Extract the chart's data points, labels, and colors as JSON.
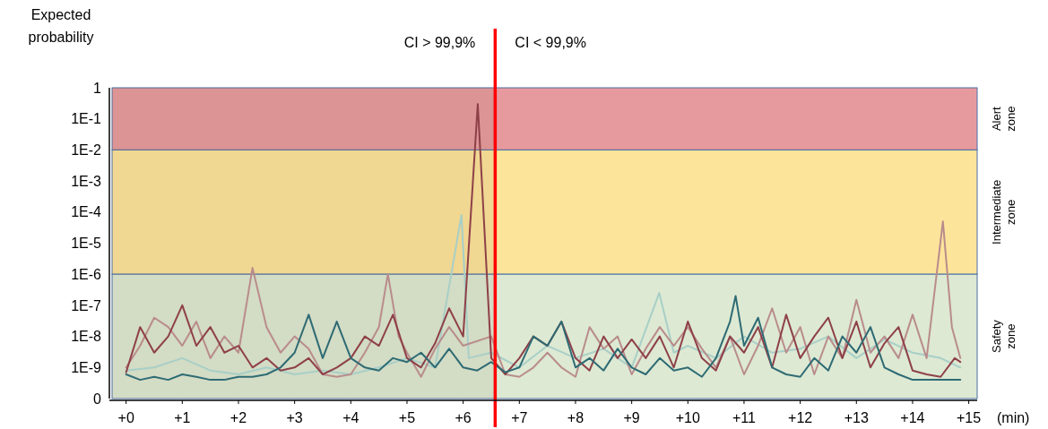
{
  "chart_data": {
    "type": "line",
    "ylabel": "Expected probability",
    "xlabel": "(min)",
    "log": "y",
    "marker": "none",
    "line_style": "solid",
    "xlim": [
      -0.25,
      15.15
    ],
    "xticks": [
      {
        "value": 0,
        "label": "+0"
      },
      {
        "value": 1,
        "label": "+1"
      },
      {
        "value": 2,
        "label": "+2"
      },
      {
        "value": 3,
        "label": "+3"
      },
      {
        "value": 4,
        "label": "+4"
      },
      {
        "value": 5,
        "label": "+5"
      },
      {
        "value": 6,
        "label": "+6"
      },
      {
        "value": 7,
        "label": "+7"
      },
      {
        "value": 8,
        "label": "+8"
      },
      {
        "value": 9,
        "label": "+9"
      },
      {
        "value": 10,
        "label": "+10"
      },
      {
        "value": 11,
        "label": "+11"
      },
      {
        "value": 12,
        "label": "+12"
      },
      {
        "value": 13,
        "label": "+13"
      },
      {
        "value": 14,
        "label": "+14"
      },
      {
        "value": 15,
        "label": "+15"
      }
    ],
    "ylim": [
      1e-10,
      1
    ],
    "yticks": [
      {
        "value": 1e-10,
        "label": "0"
      },
      {
        "value": 1e-09,
        "label": "1E-9"
      },
      {
        "value": 1e-08,
        "label": "1E-8"
      },
      {
        "value": 1e-07,
        "label": "1E-7"
      },
      {
        "value": 1e-06,
        "label": "1E-6"
      },
      {
        "value": 1e-05,
        "label": "1E-5"
      },
      {
        "value": 0.0001,
        "label": "1E-4"
      },
      {
        "value": 0.001,
        "label": "1E-3"
      },
      {
        "value": 0.01,
        "label": "1E-2"
      },
      {
        "value": 0.1,
        "label": "1E-1"
      },
      1
    ],
    "bands": [
      {
        "axis": "y",
        "from": 0.01,
        "to": 1,
        "label": "Alert zone",
        "color": "#e79a9e"
      },
      {
        "axis": "y",
        "from": 1e-06,
        "to": 0.01,
        "label": "Intermediate zone",
        "color": "#fde49b"
      },
      {
        "axis": "y",
        "from": 1e-10,
        "to": 1e-06,
        "label": "Safety zone",
        "color": "#dde9d3"
      },
      {
        "axis": "x",
        "from": -0.25,
        "to": 6.57,
        "color": "#6e5a3c"
      }
    ],
    "ref_lines": [
      {
        "axis": "x",
        "value": 6.57,
        "color": "#ff0000",
        "line_style": "solid"
      }
    ],
    "annotations": [
      "CI > 99,9%",
      "CI < 99,9%"
    ],
    "series": [
      {
        "color": "#a8cfc7",
        "x": [
          0,
          0.5,
          1,
          1.5,
          2,
          2.5,
          3,
          3.5,
          4,
          4.5,
          5,
          5.5,
          5.97,
          6.1,
          6.5,
          7,
          7.5,
          8,
          8.5,
          9,
          9.49,
          9.75,
          10,
          10.5,
          11,
          11.5,
          12,
          12.5,
          13,
          13.5,
          14,
          14.5,
          14.85
        ],
        "values": [
          8e-10,
          1e-09,
          2e-09,
          8e-10,
          6e-10,
          1e-09,
          6e-10,
          8e-10,
          6e-10,
          1e-09,
          2e-09,
          1e-09,
          8e-05,
          2e-09,
          3e-09,
          1e-09,
          5e-09,
          2e-09,
          4e-09,
          1e-09,
          2.5e-07,
          3e-09,
          5e-09,
          2e-09,
          1e-08,
          3e-09,
          4e-09,
          1e-08,
          2e-09,
          8e-09,
          3e-09,
          2e-09,
          1e-09
        ]
      },
      {
        "color": "#b98c8c",
        "x": [
          0,
          0.25,
          0.5,
          0.75,
          1,
          1.25,
          1.5,
          1.75,
          2,
          2.25,
          2.5,
          2.75,
          3,
          3.25,
          3.5,
          3.75,
          4,
          4.25,
          4.5,
          4.66,
          4.85,
          5,
          5.25,
          5.5,
          5.75,
          6,
          6.5,
          6.75,
          7,
          7.25,
          7.5,
          7.75,
          8,
          8.25,
          8.5,
          8.75,
          9,
          9.25,
          9.5,
          9.75,
          10,
          10.25,
          10.5,
          10.75,
          11,
          11.25,
          11.5,
          11.75,
          12,
          12.25,
          12.5,
          12.75,
          13,
          13.25,
          13.5,
          13.75,
          14,
          14.25,
          14.54,
          14.7,
          14.85
        ],
        "values": [
          1e-09,
          5e-09,
          4e-08,
          2e-08,
          5e-09,
          3e-08,
          2e-09,
          1e-08,
          3e-09,
          1.6e-06,
          2e-08,
          3e-09,
          1e-08,
          4e-09,
          6e-10,
          5e-10,
          6e-10,
          3e-09,
          2e-08,
          1e-06,
          1e-08,
          3e-09,
          5e-10,
          4e-09,
          2e-08,
          5e-09,
          1e-08,
          6e-10,
          5e-10,
          1e-09,
          3e-09,
          1e-09,
          5e-10,
          2e-08,
          4e-09,
          1e-08,
          6e-10,
          4e-09,
          2e-08,
          5e-09,
          2e-08,
          4e-09,
          1e-09,
          1e-08,
          6e-10,
          5e-09,
          8e-08,
          3e-09,
          2e-08,
          6e-10,
          1e-08,
          2e-09,
          1.5e-07,
          3e-09,
          1e-08,
          2e-09,
          5e-08,
          2e-09,
          5e-05,
          2e-08,
          2e-09
        ]
      },
      {
        "color": "#8e4048",
        "x": [
          0,
          0.25,
          0.5,
          0.75,
          1,
          1.25,
          1.5,
          1.75,
          2,
          2.25,
          2.5,
          2.75,
          3,
          3.25,
          3.5,
          3.75,
          4,
          4.25,
          4.5,
          4.75,
          5,
          5.25,
          5.5,
          5.75,
          6,
          6.26,
          6.5,
          6.75,
          7,
          7.25,
          7.5,
          7.75,
          8,
          8.25,
          8.5,
          8.75,
          9,
          9.25,
          9.5,
          9.75,
          10,
          10.25,
          10.5,
          10.75,
          11,
          11.25,
          11.5,
          11.75,
          12,
          12.25,
          12.5,
          12.75,
          13,
          13.25,
          13.5,
          13.75,
          14,
          14.25,
          14.5,
          14.75,
          14.85
        ],
        "values": [
          7e-10,
          2e-08,
          3e-09,
          1e-08,
          1e-07,
          5e-09,
          2e-08,
          3e-09,
          5e-09,
          1e-09,
          2e-09,
          8e-10,
          1e-09,
          2e-09,
          6e-10,
          1e-09,
          2e-09,
          1e-08,
          5e-09,
          5e-08,
          2e-09,
          1e-09,
          6e-09,
          8e-08,
          1e-08,
          0.3,
          2e-09,
          6e-10,
          2e-09,
          1e-08,
          5e-09,
          3e-08,
          2e-09,
          8e-10,
          1e-08,
          2e-09,
          8e-09,
          2e-09,
          1e-08,
          1e-09,
          3e-08,
          2e-09,
          8e-10,
          1e-08,
          3e-09,
          2e-08,
          1e-09,
          5e-08,
          2e-09,
          1e-08,
          4e-08,
          2e-09,
          3e-08,
          1e-09,
          6e-09,
          2e-08,
          8e-10,
          6e-10,
          5e-10,
          2e-09,
          1.5e-09
        ]
      },
      {
        "color": "#2e6b74",
        "x": [
          0,
          0.25,
          0.5,
          0.75,
          1,
          1.25,
          1.5,
          1.75,
          2,
          2.25,
          2.5,
          2.75,
          3,
          3.25,
          3.5,
          3.75,
          4,
          4.25,
          4.5,
          4.75,
          5,
          5.25,
          5.5,
          5.75,
          6,
          6.25,
          6.5,
          6.75,
          7,
          7.25,
          7.5,
          7.75,
          8,
          8.25,
          8.5,
          8.75,
          9,
          9.25,
          9.5,
          9.75,
          10,
          10.25,
          10.5,
          10.75,
          10.85,
          11,
          11.25,
          11.5,
          11.75,
          12,
          12.25,
          12.5,
          12.75,
          13,
          13.25,
          13.5,
          13.75,
          14,
          14.25,
          14.5,
          14.75,
          14.85
        ],
        "values": [
          6e-10,
          4e-10,
          5e-10,
          4e-10,
          6e-10,
          5e-10,
          4e-10,
          4e-10,
          5e-10,
          5e-10,
          6e-10,
          1e-09,
          3e-09,
          5e-08,
          2e-09,
          3e-08,
          2e-09,
          1e-09,
          8e-10,
          2e-09,
          1.5e-09,
          3e-09,
          1e-09,
          4e-09,
          1e-09,
          8e-10,
          1.5e-09,
          7e-10,
          1e-09,
          1e-08,
          5e-09,
          3e-08,
          1e-09,
          2e-09,
          8e-10,
          4e-09,
          1e-09,
          6e-10,
          2e-09,
          8e-10,
          1e-09,
          5e-10,
          2e-09,
          3e-08,
          2e-07,
          5e-09,
          4e-08,
          1e-09,
          6e-10,
          5e-10,
          2e-09,
          8e-10,
          1e-08,
          3e-09,
          2e-08,
          1e-09,
          6e-10,
          4e-10,
          4e-10,
          4e-10,
          4e-10,
          4e-10
        ]
      }
    ]
  }
}
